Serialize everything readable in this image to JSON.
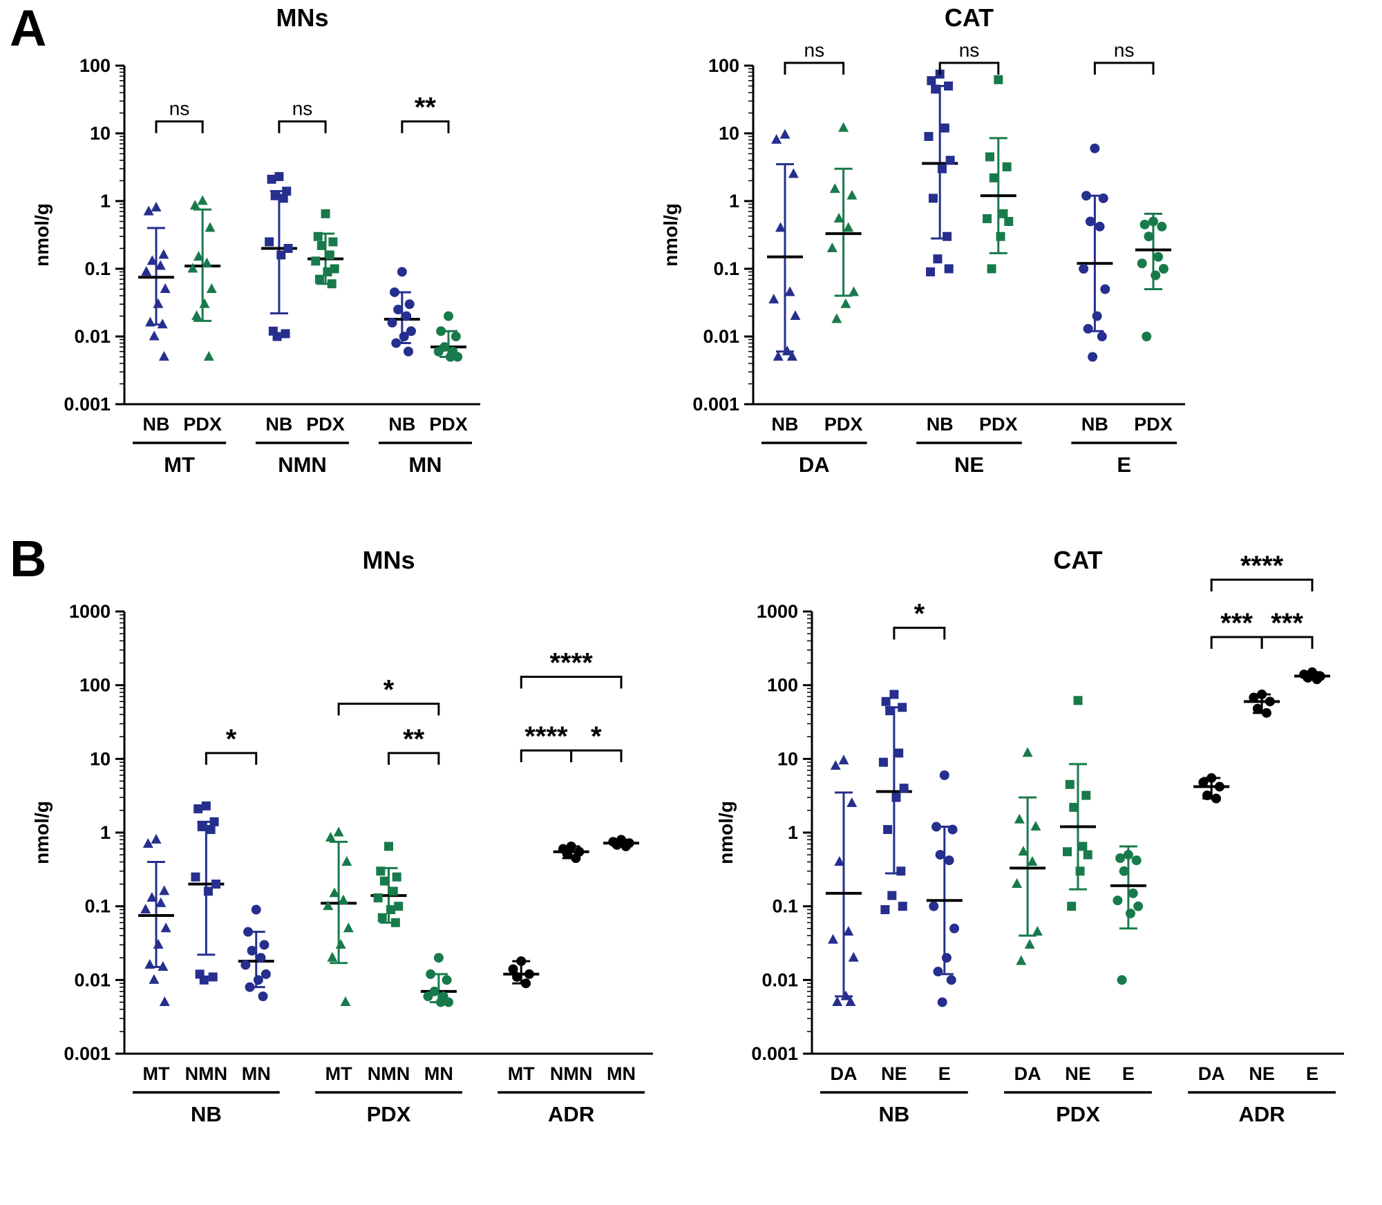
{
  "figure": {
    "panels": [
      {
        "label": "A"
      },
      {
        "label": "B"
      }
    ]
  },
  "colors": {
    "nb_blue": "#262f8e",
    "pdx_green": "#187a4b",
    "adr_black": "#000000"
  },
  "chart_data": [
    {
      "id": "a-mns",
      "type": "scatter",
      "title": "MNs",
      "ylabel": "nmol/g",
      "ylim": [
        0.001,
        100
      ],
      "y_ticks": [
        "100",
        "10",
        "1",
        "0.1",
        "0.01",
        "0.001"
      ],
      "groups": [
        {
          "label": "MT",
          "columns": [
            {
              "label": "NB",
              "marker": "triangle",
              "color": "#262f8e",
              "points": [
                0.8,
                0.7,
                0.16,
                0.13,
                0.11,
                0.09,
                0.05,
                0.03,
                0.016,
                0.015,
                0.01,
                0.005
              ],
              "median": 0.075,
              "lo": 0.015,
              "hi": 0.4
            },
            {
              "label": "PDX",
              "marker": "triangle",
              "color": "#187a4b",
              "points": [
                1.0,
                0.85,
                0.4,
                0.15,
                0.12,
                0.1,
                0.05,
                0.03,
                0.02,
                0.005
              ],
              "median": 0.11,
              "lo": 0.017,
              "hi": 0.75
            }
          ]
        },
        {
          "label": "NMN",
          "columns": [
            {
              "label": "NB",
              "marker": "square",
              "color": "#262f8e",
              "points": [
                2.3,
                2.1,
                1.4,
                1.2,
                1.1,
                0.25,
                0.2,
                0.16,
                0.012,
                0.011,
                0.01
              ],
              "median": 0.2,
              "lo": 0.022,
              "hi": 1.4
            },
            {
              "label": "PDX",
              "marker": "square",
              "color": "#187a4b",
              "points": [
                0.65,
                0.3,
                0.25,
                0.22,
                0.16,
                0.13,
                0.1,
                0.09,
                0.07,
                0.06
              ],
              "median": 0.14,
              "lo": 0.06,
              "hi": 0.33
            }
          ]
        },
        {
          "label": "MN",
          "columns": [
            {
              "label": "NB",
              "marker": "circle",
              "color": "#262f8e",
              "points": [
                0.09,
                0.045,
                0.03,
                0.025,
                0.02,
                0.016,
                0.012,
                0.01,
                0.008,
                0.006
              ],
              "median": 0.018,
              "lo": 0.008,
              "hi": 0.045
            },
            {
              "label": "PDX",
              "marker": "circle",
              "color": "#187a4b",
              "points": [
                0.02,
                0.012,
                0.01,
                0.007,
                0.006,
                0.006,
                0.005,
                0.005
              ],
              "median": 0.007,
              "lo": 0.005,
              "hi": 0.012
            }
          ]
        }
      ],
      "brackets": [
        {
          "from": 0,
          "to": 1,
          "label": "ns",
          "y": 15
        },
        {
          "from": 2,
          "to": 3,
          "label": "ns",
          "y": 15
        },
        {
          "from": 4,
          "to": 5,
          "label": "**",
          "y": 15
        }
      ]
    },
    {
      "id": "a-cat",
      "type": "scatter",
      "title": "CAT",
      "ylabel": "nmol/g",
      "ylim": [
        0.001,
        100
      ],
      "y_ticks": [
        "100",
        "10",
        "1",
        "0.1",
        "0.01",
        "0.001"
      ],
      "groups": [
        {
          "label": "DA",
          "columns": [
            {
              "label": "NB",
              "marker": "triangle",
              "color": "#262f8e",
              "points": [
                9.5,
                8,
                2.5,
                0.4,
                0.045,
                0.035,
                0.02,
                0.006,
                0.005,
                0.005
              ],
              "median": 0.15,
              "lo": 0.006,
              "hi": 3.5
            },
            {
              "label": "PDX",
              "marker": "triangle",
              "color": "#187a4b",
              "points": [
                12,
                1.5,
                1.2,
                0.55,
                0.4,
                0.2,
                0.045,
                0.03,
                0.018
              ],
              "median": 0.33,
              "lo": 0.04,
              "hi": 3.0
            }
          ]
        },
        {
          "label": "NE",
          "columns": [
            {
              "label": "NB",
              "marker": "square",
              "color": "#262f8e",
              "points": [
                75,
                60,
                50,
                45,
                12,
                9,
                4,
                3,
                1.1,
                0.3,
                0.14,
                0.1,
                0.09
              ],
              "median": 3.6,
              "lo": 0.28,
              "hi": 50
            },
            {
              "label": "PDX",
              "marker": "square",
              "color": "#187a4b",
              "points": [
                62,
                4.5,
                3.2,
                2.2,
                0.65,
                0.55,
                0.5,
                0.3,
                0.1
              ],
              "median": 1.2,
              "lo": 0.17,
              "hi": 8.5
            }
          ]
        },
        {
          "label": "E",
          "columns": [
            {
              "label": "NB",
              "marker": "circle",
              "color": "#262f8e",
              "points": [
                6,
                1.2,
                1.1,
                0.5,
                0.42,
                0.1,
                0.05,
                0.02,
                0.013,
                0.01,
                0.005
              ],
              "median": 0.12,
              "lo": 0.012,
              "hi": 1.2
            },
            {
              "label": "PDX",
              "marker": "circle",
              "color": "#187a4b",
              "points": [
                0.5,
                0.45,
                0.42,
                0.3,
                0.15,
                0.12,
                0.1,
                0.08,
                0.01
              ],
              "median": 0.19,
              "lo": 0.05,
              "hi": 0.65
            }
          ]
        }
      ],
      "brackets": [
        {
          "from": 0,
          "to": 1,
          "label": "ns",
          "y": 110
        },
        {
          "from": 2,
          "to": 3,
          "label": "ns",
          "y": 110
        },
        {
          "from": 4,
          "to": 5,
          "label": "ns",
          "y": 110
        }
      ]
    },
    {
      "id": "b-mns",
      "type": "scatter",
      "title": "MNs",
      "ylabel": "nmol/g",
      "ylim": [
        0.001,
        1000
      ],
      "y_ticks": [
        "1000",
        "100",
        "10",
        "1",
        "0.1",
        "0.01",
        "0.001"
      ],
      "groups": [
        {
          "label": "NB",
          "columns": [
            {
              "label": "MT",
              "marker": "triangle",
              "color": "#262f8e",
              "points": [
                0.8,
                0.7,
                0.16,
                0.13,
                0.11,
                0.09,
                0.05,
                0.03,
                0.016,
                0.015,
                0.01,
                0.005
              ],
              "median": 0.075,
              "lo": 0.015,
              "hi": 0.4
            },
            {
              "label": "NMN",
              "marker": "square",
              "color": "#262f8e",
              "points": [
                2.3,
                2.1,
                1.4,
                1.2,
                1.1,
                0.25,
                0.2,
                0.16,
                0.012,
                0.011,
                0.01
              ],
              "median": 0.2,
              "lo": 0.022,
              "hi": 1.4
            },
            {
              "label": "MN",
              "marker": "circle",
              "color": "#262f8e",
              "points": [
                0.09,
                0.045,
                0.03,
                0.025,
                0.02,
                0.016,
                0.012,
                0.01,
                0.008,
                0.006
              ],
              "median": 0.018,
              "lo": 0.008,
              "hi": 0.045
            }
          ]
        },
        {
          "label": "PDX",
          "columns": [
            {
              "label": "MT",
              "marker": "triangle",
              "color": "#187a4b",
              "points": [
                1.0,
                0.85,
                0.4,
                0.15,
                0.12,
                0.1,
                0.05,
                0.03,
                0.02,
                0.005
              ],
              "median": 0.11,
              "lo": 0.017,
              "hi": 0.75
            },
            {
              "label": "NMN",
              "marker": "square",
              "color": "#187a4b",
              "points": [
                0.65,
                0.3,
                0.25,
                0.22,
                0.16,
                0.13,
                0.1,
                0.09,
                0.07,
                0.06
              ],
              "median": 0.14,
              "lo": 0.06,
              "hi": 0.33
            },
            {
              "label": "MN",
              "marker": "circle",
              "color": "#187a4b",
              "points": [
                0.02,
                0.012,
                0.01,
                0.007,
                0.006,
                0.006,
                0.005,
                0.005
              ],
              "median": 0.007,
              "lo": 0.005,
              "hi": 0.012
            }
          ]
        },
        {
          "label": "ADR",
          "columns": [
            {
              "label": "MT",
              "marker": "circle",
              "color": "#000000",
              "points": [
                0.018,
                0.014,
                0.012,
                0.011,
                0.009
              ],
              "median": 0.012,
              "lo": 0.009,
              "hi": 0.018
            },
            {
              "label": "NMN",
              "marker": "circle",
              "color": "#000000",
              "points": [
                0.65,
                0.6,
                0.55,
                0.52,
                0.45
              ],
              "median": 0.55,
              "lo": 0.45,
              "hi": 0.65
            },
            {
              "label": "MN",
              "marker": "circle",
              "color": "#000000",
              "points": [
                0.8,
                0.75,
                0.72,
                0.68,
                0.65
              ],
              "median": 0.72,
              "lo": 0.65,
              "hi": 0.8
            }
          ]
        }
      ],
      "brackets": [
        {
          "from": 1,
          "to": 2,
          "label": "*",
          "y": 12
        },
        {
          "from": 3,
          "to": 5,
          "label": "*",
          "y": 56
        },
        {
          "from": 4,
          "to": 5,
          "label": "**",
          "y": 12
        },
        {
          "from": 6,
          "to": 8,
          "label": "****",
          "y": 130
        },
        {
          "from": 6,
          "to": 7,
          "label": "****",
          "y": 13
        },
        {
          "from": 7,
          "to": 8,
          "label": "*",
          "y": 13
        }
      ]
    },
    {
      "id": "b-cat",
      "type": "scatter",
      "title": "CAT",
      "ylabel": "nmol/g",
      "ylim": [
        0.001,
        1000
      ],
      "y_ticks": [
        "1000",
        "100",
        "10",
        "1",
        "0.1",
        "0.01",
        "0.001"
      ],
      "groups": [
        {
          "label": "NB",
          "columns": [
            {
              "label": "DA",
              "marker": "triangle",
              "color": "#262f8e",
              "points": [
                9.5,
                8,
                2.5,
                0.4,
                0.045,
                0.035,
                0.02,
                0.006,
                0.005,
                0.005
              ],
              "median": 0.15,
              "lo": 0.006,
              "hi": 3.5
            },
            {
              "label": "NE",
              "marker": "square",
              "color": "#262f8e",
              "points": [
                75,
                60,
                50,
                45,
                12,
                9,
                4,
                3,
                1.1,
                0.3,
                0.14,
                0.1,
                0.09
              ],
              "median": 3.6,
              "lo": 0.28,
              "hi": 50
            },
            {
              "label": "E",
              "marker": "circle",
              "color": "#262f8e",
              "points": [
                6,
                1.2,
                1.1,
                0.5,
                0.42,
                0.1,
                0.05,
                0.02,
                0.013,
                0.01,
                0.005
              ],
              "median": 0.12,
              "lo": 0.012,
              "hi": 1.2
            }
          ]
        },
        {
          "label": "PDX",
          "columns": [
            {
              "label": "DA",
              "marker": "triangle",
              "color": "#187a4b",
              "points": [
                12,
                1.5,
                1.2,
                0.55,
                0.4,
                0.2,
                0.045,
                0.03,
                0.018
              ],
              "median": 0.33,
              "lo": 0.04,
              "hi": 3.0
            },
            {
              "label": "NE",
              "marker": "square",
              "color": "#187a4b",
              "points": [
                62,
                4.5,
                3.2,
                2.2,
                0.65,
                0.55,
                0.5,
                0.3,
                0.1
              ],
              "median": 1.2,
              "lo": 0.17,
              "hi": 8.5
            },
            {
              "label": "E",
              "marker": "circle",
              "color": "#187a4b",
              "points": [
                0.5,
                0.45,
                0.42,
                0.3,
                0.15,
                0.12,
                0.1,
                0.08,
                0.01
              ],
              "median": 0.19,
              "lo": 0.05,
              "hi": 0.65
            }
          ]
        },
        {
          "label": "ADR",
          "columns": [
            {
              "label": "DA",
              "marker": "circle",
              "color": "#000000",
              "points": [
                5.5,
                4.8,
                4.2,
                3.2,
                2.9
              ],
              "median": 4.2,
              "lo": 2.9,
              "hi": 5.5
            },
            {
              "label": "NE",
              "marker": "circle",
              "color": "#000000",
              "points": [
                75,
                68,
                60,
                48,
                42
              ],
              "median": 60,
              "lo": 42,
              "hi": 75
            },
            {
              "label": "E",
              "marker": "circle",
              "color": "#000000",
              "points": [
                150,
                140,
                132,
                126,
                120
              ],
              "median": 133,
              "lo": 120,
              "hi": 150
            }
          ]
        }
      ],
      "brackets": [
        {
          "from": 1,
          "to": 2,
          "label": "*",
          "y": 600
        },
        {
          "from": 6,
          "to": 7,
          "label": "***",
          "y": 450
        },
        {
          "from": 7,
          "to": 8,
          "label": "***",
          "y": 450
        },
        {
          "from": 6,
          "to": 8,
          "label": "****",
          "y": 2700
        }
      ]
    }
  ]
}
